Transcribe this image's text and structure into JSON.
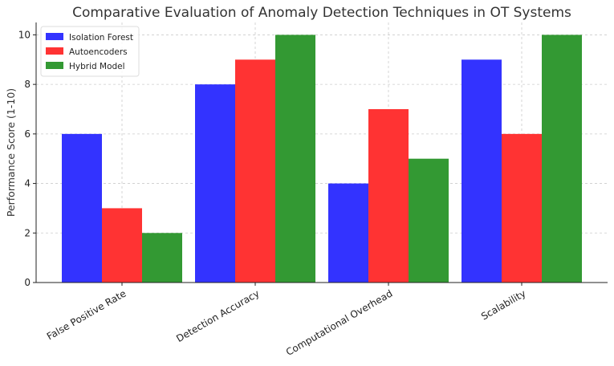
{
  "chart_data": {
    "type": "bar",
    "title": "Comparative Evaluation of Anomaly Detection Techniques in OT Systems",
    "xlabel": "",
    "ylabel": "Performance Score (1-10)",
    "ylim": [
      0,
      10.5
    ],
    "yticks": [
      0,
      2,
      4,
      6,
      8,
      10
    ],
    "grid": true,
    "legend_position": "top-left",
    "categories": [
      "False Positive Rate",
      "Detection Accuracy",
      "Computational Overhead",
      "Scalability"
    ],
    "series": [
      {
        "name": "Isolation Forest",
        "color": "#3333ff",
        "values": [
          6,
          8,
          4,
          9
        ]
      },
      {
        "name": "Autoencoders",
        "color": "#ff3333",
        "values": [
          3,
          9,
          7,
          6
        ]
      },
      {
        "name": "Hybrid Model",
        "color": "#339933",
        "values": [
          2,
          10,
          5,
          10
        ]
      }
    ]
  }
}
